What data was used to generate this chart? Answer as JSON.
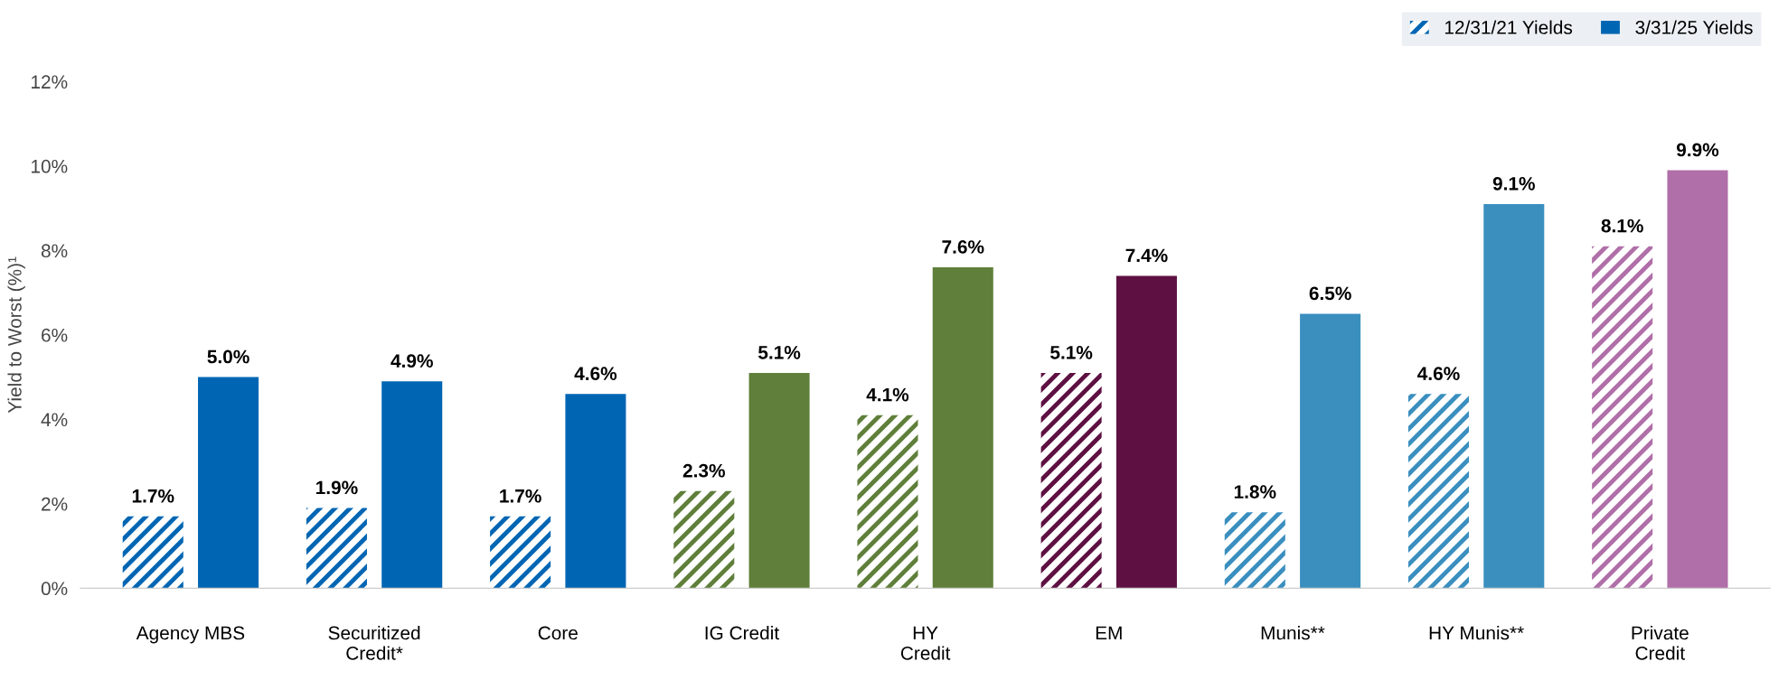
{
  "chart_data": {
    "type": "bar",
    "ylabel": "Yield to Worst (%)¹",
    "categories": [
      "Agency MBS",
      "Securitized\nCredit*",
      "Core",
      "IG Credit",
      "HY\nCredit",
      "EM",
      "Munis**",
      "HY Munis**",
      "Private\nCredit"
    ],
    "series": [
      {
        "name": "12/31/21 Yields",
        "color": "#0066b3",
        "colors": [
          "#0066b3",
          "#0066b3",
          "#0066b3",
          "#5f7f3a",
          "#5f7f3a",
          "#5e1042",
          "#3a8fbf",
          "#3a8fbf",
          "#b06fa8"
        ],
        "values": [
          1.7,
          1.9,
          1.7,
          2.3,
          4.1,
          5.1,
          1.8,
          4.6,
          8.1
        ],
        "value_labels": [
          "1.7%",
          "1.9%",
          "1.7%",
          "2.3%",
          "4.1%",
          "5.1%",
          "1.8%",
          "4.6%",
          "8.1%"
        ]
      },
      {
        "name": "3/31/25 Yields",
        "color": "#0066b3",
        "colors": [
          "#0066b3",
          "#0066b3",
          "#0066b3",
          "#5f7f3a",
          "#5f7f3a",
          "#5e1042",
          "#3a8fbf",
          "#3a8fbf",
          "#b06fa8"
        ],
        "values": [
          5.0,
          4.9,
          4.6,
          5.1,
          7.6,
          7.4,
          6.5,
          9.1,
          9.9
        ],
        "value_labels": [
          "5.0%",
          "4.9%",
          "4.6%",
          "5.1%",
          "7.6%",
          "7.4%",
          "6.5%",
          "9.1%",
          "9.9%"
        ]
      }
    ],
    "ylim": [
      0,
      12
    ],
    "yticks": [
      {
        "value": 0,
        "label": "0%"
      },
      {
        "value": 2,
        "label": "2%"
      },
      {
        "value": 4,
        "label": "4%"
      },
      {
        "value": 6,
        "label": "6%"
      },
      {
        "value": 8,
        "label": "8%"
      },
      {
        "value": 10,
        "label": "10%"
      },
      {
        "value": 12,
        "label": "12%"
      }
    ],
    "grid": false,
    "legend": "top right"
  }
}
